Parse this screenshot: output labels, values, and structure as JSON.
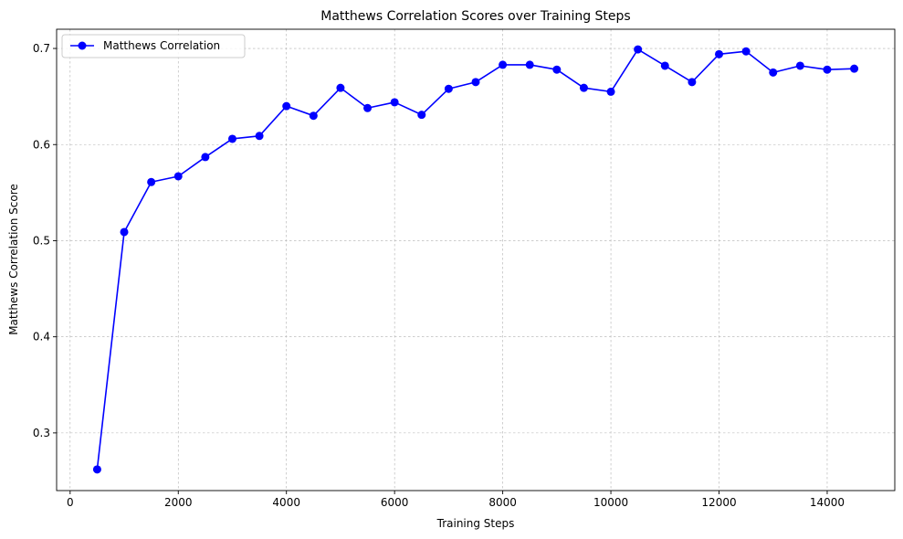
{
  "chart_data": {
    "type": "line",
    "title": "Matthews Correlation Scores over Training Steps",
    "xlabel": "Training Steps",
    "ylabel": "Matthews Correlation Score",
    "xlim": [
      -250,
      15250
    ],
    "ylim": [
      0.24,
      0.72
    ],
    "xticks": [
      0,
      2000,
      4000,
      6000,
      8000,
      10000,
      12000,
      14000
    ],
    "xtick_labels": [
      "0",
      "2000",
      "4000",
      "6000",
      "8000",
      "10000",
      "12000",
      "14000"
    ],
    "yticks": [
      0.3,
      0.4,
      0.5,
      0.6,
      0.7
    ],
    "ytick_labels": [
      "0.3",
      "0.4",
      "0.5",
      "0.6",
      "0.7"
    ],
    "grid": true,
    "legend_position": "top-left",
    "series": [
      {
        "name": "Matthews Correlation",
        "color": "#0000ff",
        "marker": "circle",
        "x": [
          500,
          1000,
          1500,
          2000,
          2500,
          3000,
          3500,
          4000,
          4500,
          5000,
          5500,
          6000,
          6500,
          7000,
          7500,
          8000,
          8500,
          9000,
          9500,
          10000,
          10500,
          11000,
          11500,
          12000,
          12500,
          13000,
          13500,
          14000,
          14500
        ],
        "y": [
          0.262,
          0.509,
          0.561,
          0.567,
          0.587,
          0.606,
          0.609,
          0.64,
          0.63,
          0.659,
          0.638,
          0.644,
          0.631,
          0.658,
          0.665,
          0.683,
          0.683,
          0.678,
          0.659,
          0.655,
          0.699,
          0.682,
          0.665,
          0.694,
          0.697,
          0.675,
          0.682,
          0.678,
          0.679
        ]
      }
    ]
  }
}
